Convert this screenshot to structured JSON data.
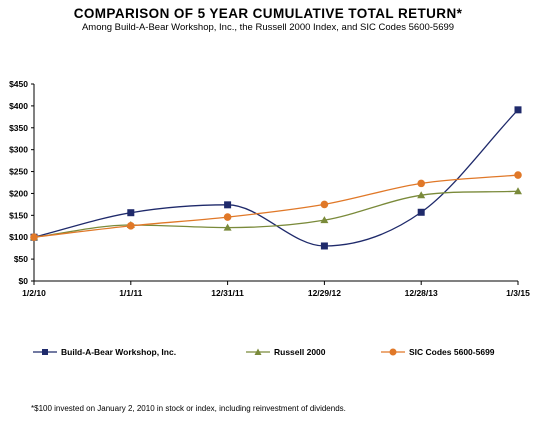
{
  "header": {
    "title": "COMPARISON OF 5 YEAR CUMULATIVE TOTAL RETURN*",
    "subtitle": "Among Build-A-Bear Workshop, Inc., the Russell 2000 Index, and SIC Codes 5600-5699"
  },
  "footnote": "*$100 invested on January 2, 2010 in stock or index, including reinvestment of dividends.",
  "chart_data": {
    "type": "line",
    "title": "COMPARISON OF 5 YEAR CUMULATIVE TOTAL RETURN*",
    "subtitle": "Among Build-A-Bear Workshop, Inc., the Russell 2000 Index, and SIC Codes 5600-5699",
    "categories": [
      "1/2/10",
      "1/1/11",
      "12/31/11",
      "12/29/12",
      "12/28/13",
      "1/3/15"
    ],
    "y_ticks": [
      "$0",
      "$50",
      "$100",
      "$150",
      "$200",
      "$250",
      "$300",
      "$350",
      "$400",
      "$450"
    ],
    "ylim": [
      0,
      450
    ],
    "grid": false,
    "legend_position": "bottom",
    "series": [
      {
        "name": "Build-A-Bear Workshop, Inc.",
        "color": "#1f2a6b",
        "marker": "square",
        "values": [
          100,
          156,
          174,
          80,
          157,
          391
        ]
      },
      {
        "name": "Russell 2000",
        "color": "#7a8a3a",
        "marker": "triangle",
        "values": [
          100,
          128,
          122,
          139,
          196,
          205
        ]
      },
      {
        "name": "SIC Codes 5600-5699",
        "color": "#e07828",
        "marker": "circle",
        "values": [
          100,
          126,
          146,
          175,
          223,
          242
        ]
      }
    ]
  }
}
